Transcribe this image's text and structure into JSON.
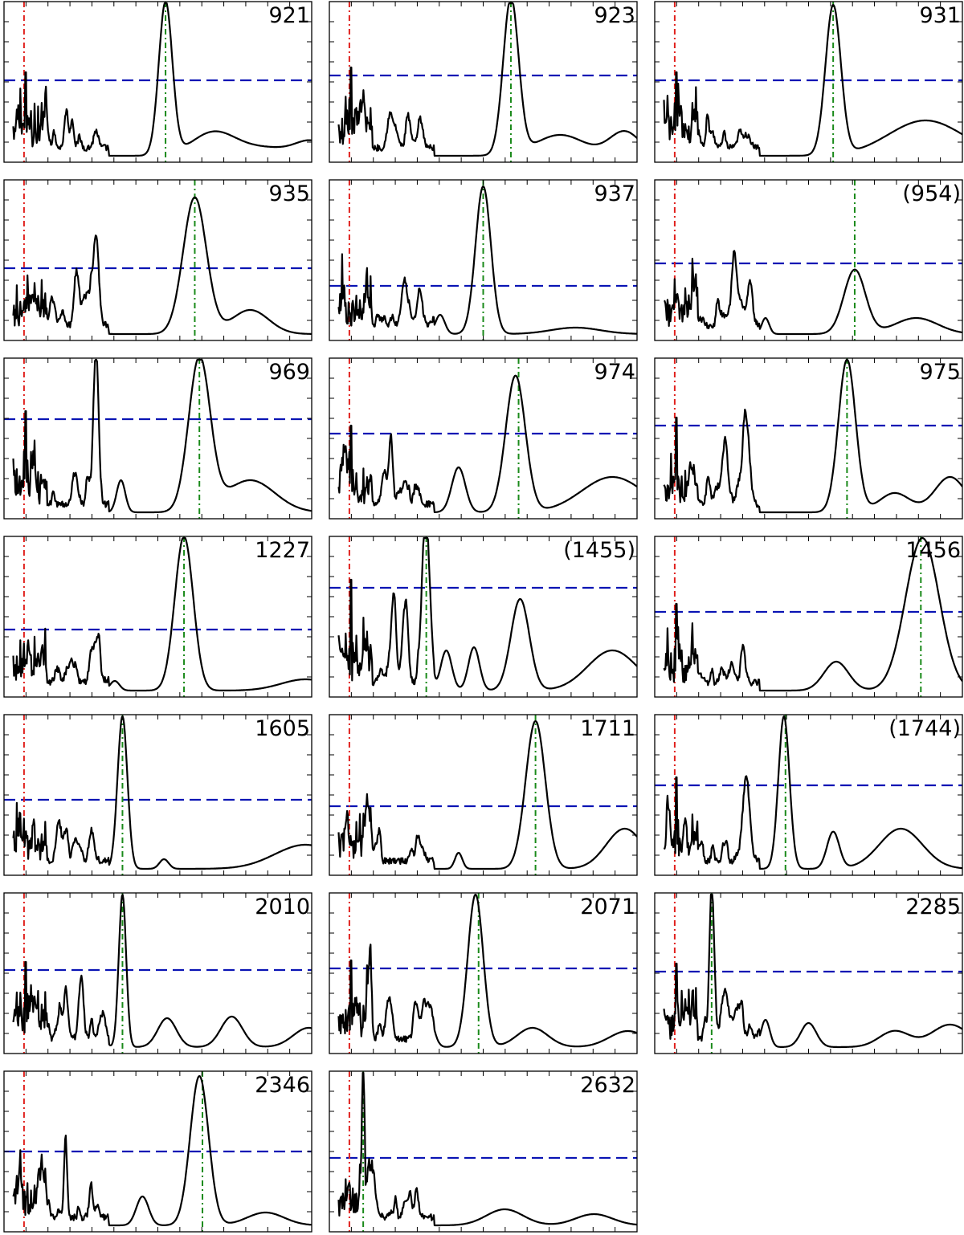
{
  "chart_data": {
    "type": "line",
    "layout": "grid of small multiples, 3 columns x 7 rows",
    "x_ticks_labeled": false,
    "y_ticks_labeled": false,
    "x_range": [
      0,
      1
    ],
    "y_range": [
      0,
      1
    ],
    "colors": {
      "curve": "#000000",
      "threshold": "#0a14b4",
      "red_marker": "#e0201c",
      "green_marker": "#1a8a1a"
    },
    "panels": [
      {
        "label": "921",
        "threshold": 0.51,
        "red_x": 0.065,
        "green_x": 0.525,
        "peaks": [
          [
            0.525,
            0.95,
            0.022
          ]
        ],
        "right_tail": [
          [
            0.68,
            0.14,
            0.07
          ],
          [
            0.85,
            0.05,
            0.1
          ],
          [
            1.0,
            0.08,
            0.05
          ]
        ]
      },
      {
        "label": "923",
        "threshold": 0.54,
        "red_x": 0.065,
        "green_x": 0.59,
        "peaks": [
          [
            0.59,
            0.97,
            0.025
          ]
        ],
        "right_tail": [
          [
            0.75,
            0.13,
            0.08
          ],
          [
            0.96,
            0.15,
            0.05
          ]
        ]
      },
      {
        "label": "931",
        "threshold": 0.51,
        "red_x": 0.065,
        "green_x": 0.58,
        "peaks": [
          [
            0.58,
            0.93,
            0.025
          ]
        ],
        "right_tail": [
          [
            0.88,
            0.22,
            0.12
          ]
        ]
      },
      {
        "label": "935",
        "threshold": 0.45,
        "red_x": 0.065,
        "green_x": 0.62,
        "peaks": [
          [
            0.3,
            0.48,
            0.008
          ],
          [
            0.62,
            0.85,
            0.038
          ],
          [
            0.28,
            0.14,
            0.02
          ]
        ],
        "right_tail": [
          [
            0.8,
            0.15,
            0.06
          ]
        ]
      },
      {
        "label": "937",
        "threshold": 0.34,
        "red_x": 0.065,
        "green_x": 0.5,
        "peaks": [
          [
            0.5,
            0.92,
            0.025
          ],
          [
            0.245,
            0.15,
            0.01
          ],
          [
            0.36,
            0.12,
            0.015
          ]
        ],
        "right_tail": [
          [
            0.8,
            0.04,
            0.08
          ]
        ]
      },
      {
        "label": "(954)",
        "threshold": 0.48,
        "red_x": 0.065,
        "green_x": 0.65,
        "peaks": [
          [
            0.65,
            0.4,
            0.035
          ],
          [
            0.26,
            0.3,
            0.008
          ],
          [
            0.31,
            0.27,
            0.008
          ],
          [
            0.36,
            0.1,
            0.012
          ]
        ],
        "right_tail": [
          [
            0.85,
            0.1,
            0.07
          ]
        ]
      },
      {
        "label": "969",
        "threshold": 0.62,
        "red_x": 0.065,
        "green_x": 0.635,
        "peaks": [
          [
            0.3,
            0.88,
            0.008
          ],
          [
            0.635,
            0.95,
            0.035
          ],
          [
            0.38,
            0.2,
            0.014
          ]
        ],
        "right_tail": [
          [
            0.8,
            0.2,
            0.08
          ]
        ]
      },
      {
        "label": "974",
        "threshold": 0.53,
        "red_x": 0.065,
        "green_x": 0.615,
        "peaks": [
          [
            0.605,
            0.85,
            0.032
          ],
          [
            0.2,
            0.43,
            0.006
          ],
          [
            0.42,
            0.28,
            0.022
          ]
        ],
        "right_tail": [
          [
            0.92,
            0.22,
            0.1
          ]
        ]
      },
      {
        "label": "975",
        "threshold": 0.58,
        "red_x": 0.065,
        "green_x": 0.625,
        "peaks": [
          [
            0.625,
            0.95,
            0.028
          ],
          [
            0.3,
            0.43,
            0.01
          ],
          [
            0.23,
            0.38,
            0.008
          ]
        ],
        "right_tail": [
          [
            0.78,
            0.12,
            0.05
          ],
          [
            0.96,
            0.22,
            0.05
          ]
        ]
      },
      {
        "label": "1227",
        "threshold": 0.42,
        "red_x": 0.065,
        "green_x": 0.585,
        "peaks": [
          [
            0.585,
            0.96,
            0.03
          ],
          [
            0.3,
            0.07,
            0.015
          ],
          [
            0.36,
            0.06,
            0.015
          ]
        ],
        "right_tail": [
          [
            0.98,
            0.07,
            0.08
          ]
        ]
      },
      {
        "label": "(1455)",
        "threshold": 0.68,
        "red_x": 0.065,
        "green_x": 0.315,
        "peaks": [
          [
            0.315,
            0.96,
            0.012
          ],
          [
            0.21,
            0.52,
            0.007
          ],
          [
            0.25,
            0.43,
            0.007
          ],
          [
            0.62,
            0.57,
            0.03
          ],
          [
            0.47,
            0.27,
            0.018
          ],
          [
            0.38,
            0.25,
            0.018
          ]
        ],
        "right_tail": [
          [
            0.92,
            0.25,
            0.08
          ]
        ]
      },
      {
        "label": "1456",
        "threshold": 0.53,
        "red_x": 0.065,
        "green_x": 0.865,
        "peaks": [
          [
            0.87,
            0.95,
            0.055
          ],
          [
            0.59,
            0.18,
            0.04
          ]
        ],
        "right_tail": []
      },
      {
        "label": "1605",
        "threshold": 0.47,
        "red_x": 0.065,
        "green_x": 0.385,
        "peaks": [
          [
            0.385,
            0.95,
            0.016
          ],
          [
            0.23,
            0.13,
            0.008
          ],
          [
            0.52,
            0.06,
            0.015
          ]
        ],
        "right_tail": [
          [
            0.98,
            0.15,
            0.1
          ]
        ]
      },
      {
        "label": "1711",
        "threshold": 0.43,
        "red_x": 0.065,
        "green_x": 0.67,
        "peaks": [
          [
            0.67,
            0.92,
            0.032
          ],
          [
            0.42,
            0.1,
            0.012
          ]
        ],
        "right_tail": [
          [
            0.96,
            0.25,
            0.06
          ]
        ]
      },
      {
        "label": "(1744)",
        "threshold": 0.56,
        "red_x": 0.065,
        "green_x": 0.425,
        "peaks": [
          [
            0.42,
            0.95,
            0.018
          ],
          [
            0.3,
            0.22,
            0.012
          ],
          [
            0.58,
            0.23,
            0.02
          ],
          [
            0.3,
            0.16,
            0.01
          ]
        ],
        "right_tail": [
          [
            0.8,
            0.25,
            0.07
          ]
        ]
      },
      {
        "label": "2010",
        "threshold": 0.52,
        "red_x": 0.065,
        "green_x": 0.385,
        "peaks": [
          [
            0.385,
            0.95,
            0.012
          ],
          [
            0.2,
            0.23,
            0.006
          ],
          [
            0.25,
            0.14,
            0.008
          ],
          [
            0.32,
            0.16,
            0.01
          ]
        ],
        "right_tail": [
          [
            0.53,
            0.18,
            0.03
          ],
          [
            0.74,
            0.19,
            0.035
          ],
          [
            0.99,
            0.12,
            0.05
          ]
        ]
      },
      {
        "label": "2071",
        "threshold": 0.53,
        "red_x": 0.065,
        "green_x": 0.485,
        "peaks": [
          [
            0.475,
            0.95,
            0.025
          ],
          [
            0.13,
            0.26,
            0.006
          ],
          [
            0.32,
            0.22,
            0.018
          ]
        ],
        "right_tail": [
          [
            0.66,
            0.12,
            0.05
          ],
          [
            0.97,
            0.1,
            0.06
          ]
        ]
      },
      {
        "label": "2285",
        "threshold": 0.51,
        "red_x": 0.065,
        "green_x": 0.185,
        "peaks": [
          [
            0.185,
            0.98,
            0.007
          ],
          [
            0.27,
            0.2,
            0.012
          ],
          [
            0.36,
            0.17,
            0.014
          ]
        ],
        "right_tail": [
          [
            0.5,
            0.15,
            0.025
          ],
          [
            0.78,
            0.1,
            0.05
          ],
          [
            0.96,
            0.14,
            0.06
          ]
        ]
      },
      {
        "label": "2346",
        "threshold": 0.5,
        "red_x": 0.065,
        "green_x": 0.645,
        "peaks": [
          [
            0.635,
            0.93,
            0.03
          ],
          [
            0.2,
            0.5,
            0.005
          ],
          [
            0.45,
            0.18,
            0.02
          ]
        ],
        "right_tail": [
          [
            0.85,
            0.08,
            0.06
          ]
        ]
      },
      {
        "label": "2632",
        "threshold": 0.46,
        "red_x": 0.065,
        "green_x": 0.11,
        "peaks": [
          [
            0.11,
            0.96,
            0.004
          ],
          [
            0.14,
            0.18,
            0.012
          ]
        ],
        "right_tail": [
          [
            0.57,
            0.1,
            0.06
          ],
          [
            0.86,
            0.07,
            0.06
          ]
        ]
      }
    ]
  }
}
